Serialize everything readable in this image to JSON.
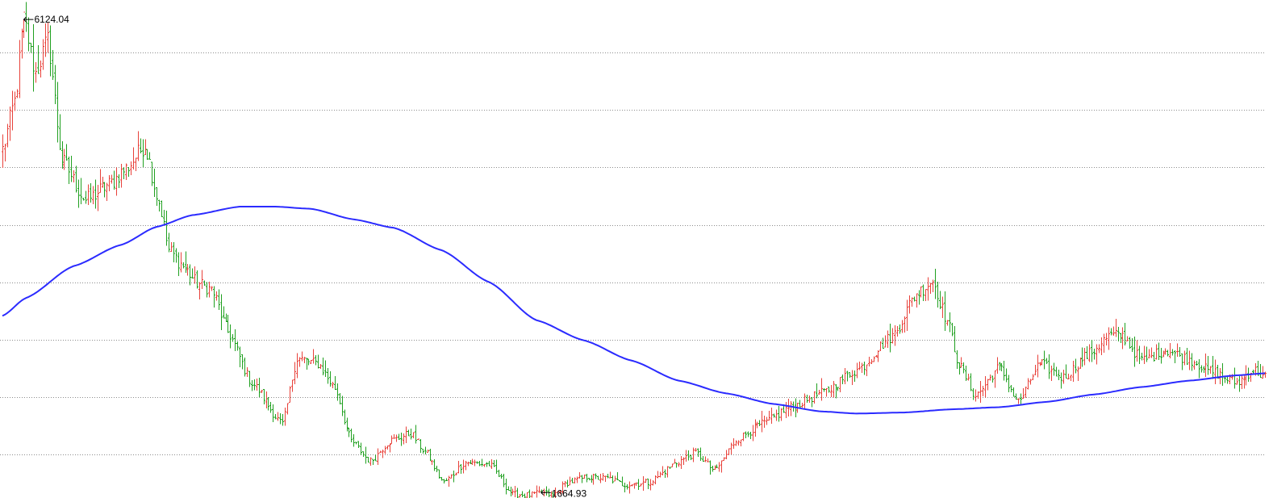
{
  "chart_data": {
    "type": "ohlc",
    "title": "",
    "xlabel": "",
    "ylabel": "",
    "ylim": [
      1500,
      6300
    ],
    "grid": {
      "horizontal": true,
      "vertical": false,
      "style": "dotted"
    },
    "legend": "none",
    "colors": {
      "up": "#e8413a",
      "down": "#20a020",
      "ma": "#2b2bff",
      "grid": "#8c8c8c"
    },
    "annotations": [
      {
        "name": "high",
        "label": "6124.04",
        "value": 6124.04,
        "index": 9
      },
      {
        "name": "low",
        "label": "1664.93",
        "value": 1664.93,
        "index": 227
      }
    ],
    "price_path": [
      [
        0,
        4900
      ],
      [
        5,
        5350
      ],
      [
        9,
        6124
      ],
      [
        14,
        5620
      ],
      [
        19,
        5930
      ],
      [
        25,
        4800
      ],
      [
        35,
        4420
      ],
      [
        45,
        4570
      ],
      [
        52,
        4720
      ],
      [
        60,
        4940
      ],
      [
        66,
        4400
      ],
      [
        70,
        3950
      ],
      [
        76,
        3800
      ],
      [
        82,
        3640
      ],
      [
        88,
        3580
      ],
      [
        95,
        3180
      ],
      [
        105,
        2700
      ],
      [
        118,
        2310
      ],
      [
        124,
        2930
      ],
      [
        133,
        2880
      ],
      [
        140,
        2650
      ],
      [
        147,
        2150
      ],
      [
        155,
        1960
      ],
      [
        163,
        2150
      ],
      [
        172,
        2220
      ],
      [
        178,
        2050
      ],
      [
        186,
        1760
      ],
      [
        195,
        1950
      ],
      [
        205,
        1930
      ],
      [
        215,
        1650
      ],
      [
        222,
        1640
      ],
      [
        227,
        1665
      ],
      [
        232,
        1640
      ],
      [
        238,
        1760
      ],
      [
        246,
        1810
      ],
      [
        255,
        1800
      ],
      [
        262,
        1740
      ],
      [
        272,
        1760
      ],
      [
        285,
        1960
      ],
      [
        292,
        2040
      ],
      [
        300,
        1870
      ],
      [
        310,
        2180
      ],
      [
        320,
        2310
      ],
      [
        332,
        2470
      ],
      [
        345,
        2600
      ],
      [
        360,
        2820
      ],
      [
        375,
        3140
      ],
      [
        385,
        3540
      ],
      [
        392,
        3660
      ],
      [
        398,
        3280
      ],
      [
        403,
        2870
      ],
      [
        410,
        2580
      ],
      [
        420,
        2850
      ],
      [
        428,
        2520
      ],
      [
        437,
        2880
      ],
      [
        447,
        2750
      ],
      [
        457,
        2960
      ],
      [
        467,
        3150
      ],
      [
        472,
        3140
      ],
      [
        480,
        2910
      ],
      [
        490,
        3010
      ],
      [
        500,
        2920
      ],
      [
        510,
        2800
      ],
      [
        520,
        2700
      ],
      [
        527,
        2820
      ],
      [
        532,
        2760
      ]
    ],
    "ma_curve": [
      [
        0,
        3330
      ],
      [
        10,
        3500
      ],
      [
        30,
        3800
      ],
      [
        50,
        4000
      ],
      [
        65,
        4170
      ],
      [
        80,
        4280
      ],
      [
        100,
        4360
      ],
      [
        115,
        4360
      ],
      [
        130,
        4340
      ],
      [
        148,
        4240
      ],
      [
        165,
        4160
      ],
      [
        185,
        3950
      ],
      [
        205,
        3650
      ],
      [
        225,
        3290
      ],
      [
        245,
        3100
      ],
      [
        265,
        2910
      ],
      [
        285,
        2720
      ],
      [
        305,
        2600
      ],
      [
        325,
        2500
      ],
      [
        345,
        2430
      ],
      [
        360,
        2410
      ],
      [
        380,
        2420
      ],
      [
        400,
        2450
      ],
      [
        420,
        2470
      ],
      [
        440,
        2520
      ],
      [
        460,
        2590
      ],
      [
        480,
        2660
      ],
      [
        500,
        2720
      ],
      [
        520,
        2770
      ],
      [
        532,
        2790
      ]
    ]
  }
}
